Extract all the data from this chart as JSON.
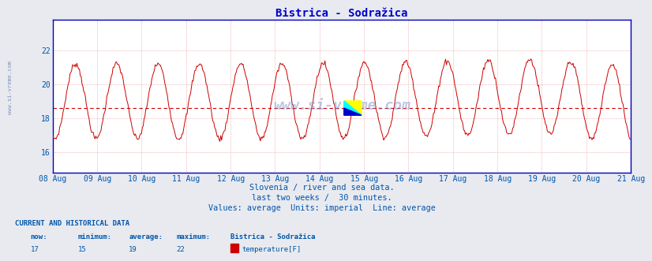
{
  "title": "Bistrica - Sodražica",
  "subtitle_lines": [
    "Slovenia / river and sea data.",
    "last two weeks /  30 minutes.",
    "Values: average  Units: imperial  Line: average"
  ],
  "footer_header": "CURRENT AND HISTORICAL DATA",
  "footer_cols": [
    "now:",
    "minimum:",
    "average:",
    "maximum:",
    "Bistrica - Sodražica"
  ],
  "footer_vals": [
    "17",
    "15",
    "19",
    "22",
    "temperature[F]"
  ],
  "line_color": "#cc0000",
  "avg_line_value": 18.6,
  "ylim": [
    14.8,
    23.8
  ],
  "yticks": [
    16,
    18,
    20,
    22
  ],
  "x_labels": [
    "08 Aug",
    "09 Aug",
    "10 Aug",
    "11 Aug",
    "12 Aug",
    "13 Aug",
    "14 Aug",
    "15 Aug",
    "16 Aug",
    "17 Aug",
    "18 Aug",
    "19 Aug",
    "20 Aug",
    "21 Aug"
  ],
  "bg_color": "#e8eaf0",
  "plot_bg_color": "#ffffff",
  "grid_color": "#cc0000",
  "axis_color": "#0000bb",
  "text_color": "#0055aa",
  "watermark": "www.si-vreme.com",
  "title_color": "#0000cc",
  "title_fontsize": 10,
  "label_fontsize": 7,
  "footer_fontsize": 6.5,
  "n_days": 14,
  "points_per_day": 48
}
